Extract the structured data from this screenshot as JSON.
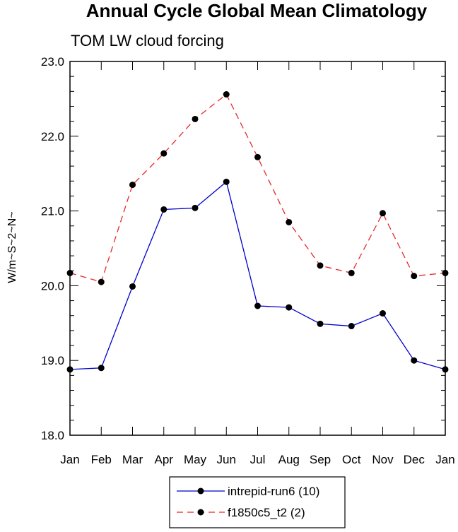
{
  "chart_data": {
    "type": "line",
    "title": "Annual Cycle Global Mean Climatology",
    "subtitle": "TOM LW cloud forcing",
    "ylabel": "W/m~S~2~N~",
    "xlabel": "",
    "categories": [
      "Jan",
      "Feb",
      "Mar",
      "Apr",
      "May",
      "Jun",
      "Jul",
      "Aug",
      "Sep",
      "Oct",
      "Nov",
      "Dec",
      "Jan"
    ],
    "ylim": [
      18.0,
      23.0
    ],
    "yticks": [
      "18.0",
      "19.0",
      "20.0",
      "21.0",
      "22.0",
      "23.0"
    ],
    "legend_position": "bottom-center",
    "series": [
      {
        "name": "intrepid-run6 (10)",
        "color": "#0000cc",
        "dash": "solid",
        "values": [
          18.88,
          18.9,
          19.99,
          21.02,
          21.04,
          21.39,
          19.73,
          19.71,
          19.49,
          19.46,
          19.63,
          19.0,
          18.88
        ]
      },
      {
        "name": "f1850c5_t2 (2)",
        "color": "#e8272a",
        "dash": "dashed",
        "values": [
          20.17,
          20.05,
          21.35,
          21.77,
          22.23,
          22.56,
          21.72,
          20.85,
          20.27,
          20.17,
          20.97,
          20.13,
          20.17
        ]
      }
    ]
  }
}
